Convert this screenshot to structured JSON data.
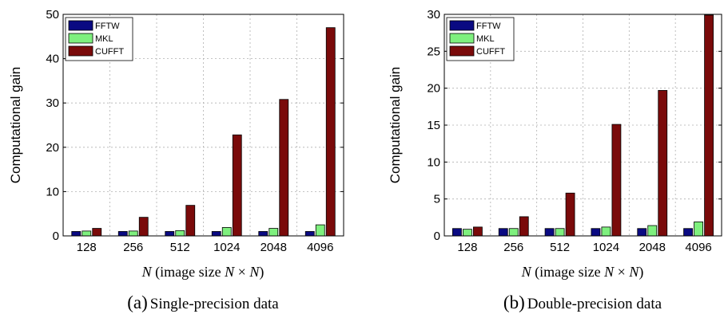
{
  "colors": {
    "FFTW": "#0a0a82",
    "MKL": "#7ef07e",
    "CUFFT": "#7a0a0a"
  },
  "chart_data": [
    {
      "type": "bar",
      "categories": [
        "128",
        "256",
        "512",
        "1024",
        "2048",
        "4096"
      ],
      "series": [
        {
          "name": "FFTW",
          "values": [
            1,
            1,
            1,
            1,
            1,
            1
          ]
        },
        {
          "name": "MKL",
          "values": [
            1.1,
            1.1,
            1.2,
            1.9,
            1.7,
            2.5
          ]
        },
        {
          "name": "CUFFT",
          "values": [
            1.7,
            4.2,
            6.9,
            22.8,
            30.8,
            47.0
          ]
        }
      ],
      "ylim": [
        0,
        50
      ],
      "yticks": [
        0,
        10,
        20,
        30,
        40,
        50
      ],
      "ylabel": "Computational gain",
      "xlabel_parts": [
        "N",
        " (image size ",
        "N",
        " × ",
        "N",
        ")"
      ],
      "caption_letter": "(a)",
      "caption_text": "Single-precision data",
      "grid": true,
      "legend": "top-left"
    },
    {
      "type": "bar",
      "categories": [
        "128",
        "256",
        "512",
        "1024",
        "2048",
        "4096"
      ],
      "series": [
        {
          "name": "FFTW",
          "values": [
            1,
            1,
            1,
            1,
            1,
            1
          ]
        },
        {
          "name": "MKL",
          "values": [
            0.9,
            1.0,
            1.0,
            1.2,
            1.4,
            1.9
          ]
        },
        {
          "name": "CUFFT",
          "values": [
            1.2,
            2.6,
            5.8,
            15.1,
            19.7,
            29.9
          ]
        }
      ],
      "ylim": [
        0,
        30
      ],
      "yticks": [
        0,
        5,
        10,
        15,
        20,
        25,
        30
      ],
      "ylabel": "Computational gain",
      "xlabel_parts": [
        "N",
        " (image size ",
        "N",
        " × ",
        "N",
        ")"
      ],
      "caption_letter": "(b)",
      "caption_text": "Double-precision data",
      "grid": true,
      "legend": "top-left"
    }
  ]
}
